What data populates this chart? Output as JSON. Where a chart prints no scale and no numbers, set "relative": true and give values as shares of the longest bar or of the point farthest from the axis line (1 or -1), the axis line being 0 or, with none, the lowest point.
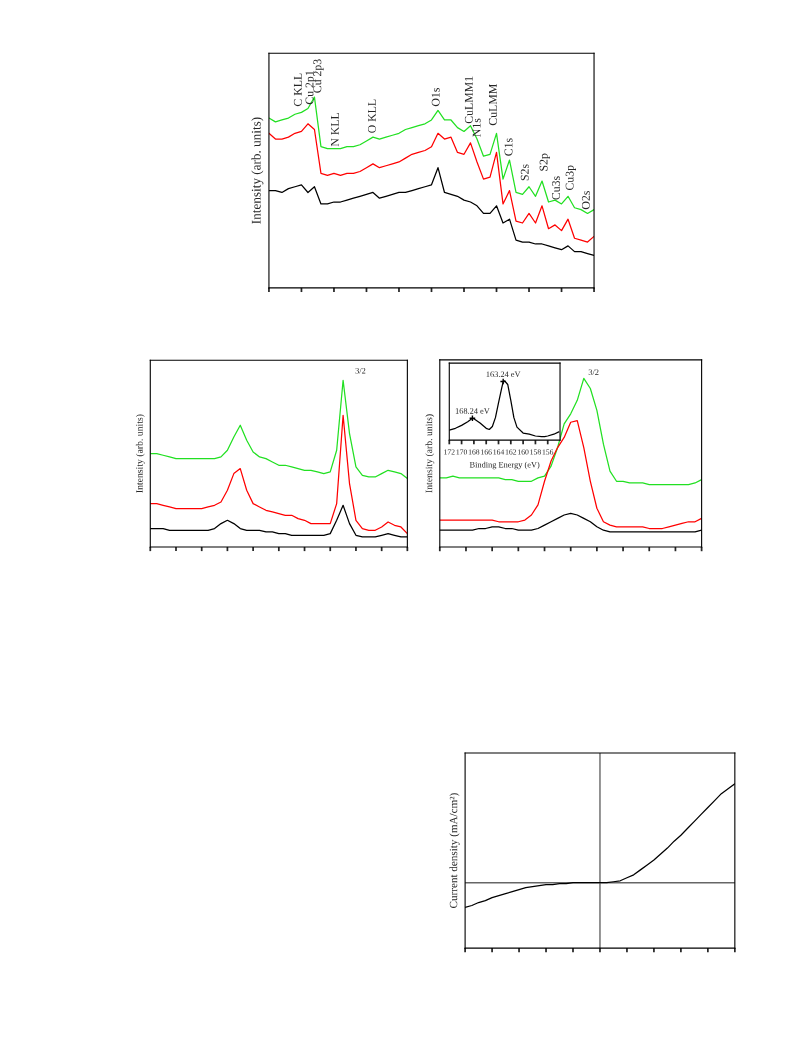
{
  "chart_data": [
    {
      "type": "line",
      "ylabel": "Intensity (arb. units)",
      "relative": true,
      "tick_labels": false,
      "categories": [
        null,
        null,
        null,
        null,
        null,
        null,
        null,
        null,
        null,
        null,
        null,
        null,
        null,
        null,
        null,
        null,
        null,
        null,
        null,
        null,
        null,
        null,
        null,
        null,
        null,
        null,
        null,
        null,
        null,
        null,
        null,
        null,
        null,
        null,
        null,
        null,
        null,
        null,
        null,
        null,
        null,
        null,
        null,
        null,
        null,
        null,
        null,
        null,
        null,
        null,
        null
      ],
      "series": [
        {
          "color": "#22e022",
          "values": [
            0.89,
            0.87,
            0.88,
            0.89,
            0.91,
            0.92,
            0.94,
            1.0,
            0.74,
            0.73,
            0.73,
            0.73,
            0.74,
            0.74,
            0.75,
            0.77,
            0.79,
            0.78,
            0.79,
            0.8,
            0.81,
            0.83,
            0.84,
            0.85,
            0.86,
            0.88,
            0.93,
            0.88,
            0.88,
            0.84,
            0.82,
            0.85,
            0.78,
            0.69,
            0.7,
            0.81,
            0.57,
            0.67,
            0.5,
            0.49,
            0.53,
            0.48,
            0.56,
            0.45,
            0.46,
            0.44,
            0.48,
            0.42,
            0.41,
            0.39,
            0.41
          ]
        },
        {
          "color": "#ff0000",
          "values": [
            0.81,
            0.78,
            0.78,
            0.79,
            0.81,
            0.82,
            0.86,
            0.83,
            0.6,
            0.59,
            0.6,
            0.59,
            0.6,
            0.6,
            0.61,
            0.63,
            0.65,
            0.63,
            0.64,
            0.65,
            0.66,
            0.68,
            0.7,
            0.71,
            0.72,
            0.74,
            0.81,
            0.78,
            0.79,
            0.71,
            0.7,
            0.76,
            0.66,
            0.57,
            0.58,
            0.71,
            0.44,
            0.51,
            0.35,
            0.34,
            0.39,
            0.34,
            0.43,
            0.31,
            0.33,
            0.3,
            0.36,
            0.26,
            0.25,
            0.24,
            0.27
          ]
        },
        {
          "color": "#000000",
          "values": [
            0.51,
            0.51,
            0.5,
            0.52,
            0.53,
            0.54,
            0.5,
            0.53,
            0.44,
            0.44,
            0.45,
            0.45,
            0.46,
            0.47,
            0.48,
            0.49,
            0.5,
            0.47,
            0.48,
            0.49,
            0.5,
            0.5,
            0.51,
            0.52,
            0.53,
            0.54,
            0.63,
            0.5,
            0.49,
            0.48,
            0.46,
            0.45,
            0.43,
            0.39,
            0.39,
            0.43,
            0.34,
            0.36,
            0.25,
            0.24,
            0.24,
            0.23,
            0.23,
            0.22,
            0.21,
            0.2,
            0.22,
            0.19,
            0.19,
            0.18,
            0.17
          ]
        }
      ],
      "annotations": [
        "C KLL",
        "Cu 2p1",
        "Cu 2p3",
        "N KLL",
        "O KLL",
        "O1s",
        "CuLMM1",
        "N1s",
        "CuLMM",
        "C1s",
        "S2s",
        "S2p",
        "Cu3s",
        "Cu3p",
        "O2s"
      ]
    },
    {
      "type": "line",
      "ylabel": "Intensity (arb. units)",
      "relative": true,
      "tick_labels": false,
      "categories": [
        null,
        null,
        null,
        null,
        null,
        null,
        null,
        null,
        null,
        null,
        null,
        null,
        null,
        null,
        null,
        null,
        null,
        null,
        null,
        null,
        null,
        null,
        null,
        null,
        null,
        null,
        null,
        null,
        null,
        null,
        null,
        null,
        null,
        null,
        null,
        null,
        null,
        null,
        null,
        null,
        null
      ],
      "series": [
        {
          "color": "#22e022",
          "values": [
            0.56,
            0.56,
            0.55,
            0.54,
            0.53,
            0.53,
            0.53,
            0.53,
            0.53,
            0.53,
            0.53,
            0.54,
            0.58,
            0.66,
            0.73,
            0.64,
            0.57,
            0.54,
            0.53,
            0.51,
            0.49,
            0.49,
            0.48,
            0.47,
            0.46,
            0.46,
            0.45,
            0.44,
            0.45,
            0.58,
            1.0,
            0.68,
            0.48,
            0.43,
            0.42,
            0.42,
            0.44,
            0.46,
            0.45,
            0.44,
            0.41
          ]
        },
        {
          "color": "#ff0000",
          "values": [
            0.26,
            0.26,
            0.25,
            0.24,
            0.23,
            0.23,
            0.23,
            0.23,
            0.23,
            0.24,
            0.25,
            0.27,
            0.34,
            0.44,
            0.47,
            0.34,
            0.26,
            0.24,
            0.22,
            0.21,
            0.2,
            0.19,
            0.19,
            0.17,
            0.16,
            0.14,
            0.14,
            0.14,
            0.14,
            0.26,
            0.79,
            0.38,
            0.16,
            0.11,
            0.1,
            0.1,
            0.12,
            0.15,
            0.13,
            0.12,
            0.08
          ]
        },
        {
          "color": "#000000",
          "values": [
            0.11,
            0.11,
            0.11,
            0.1,
            0.1,
            0.1,
            0.1,
            0.1,
            0.1,
            0.1,
            0.11,
            0.14,
            0.16,
            0.14,
            0.11,
            0.1,
            0.1,
            0.1,
            0.09,
            0.09,
            0.08,
            0.08,
            0.07,
            0.07,
            0.07,
            0.07,
            0.07,
            0.07,
            0.08,
            0.16,
            0.25,
            0.14,
            0.07,
            0.06,
            0.06,
            0.06,
            0.07,
            0.08,
            0.07,
            0.06,
            0.06
          ]
        }
      ],
      "annotations": [
        "3/2"
      ]
    },
    {
      "type": "line",
      "ylabel": "Intensity (arb. units)",
      "relative": true,
      "tick_labels": false,
      "categories": [
        null,
        null,
        null,
        null,
        null,
        null,
        null,
        null,
        null,
        null,
        null,
        null,
        null,
        null,
        null,
        null,
        null,
        null,
        null,
        null,
        null,
        null,
        null,
        null,
        null,
        null,
        null,
        null,
        null,
        null,
        null,
        null,
        null,
        null,
        null,
        null,
        null,
        null,
        null,
        null,
        null
      ],
      "series": [
        {
          "color": "#22e022",
          "values": [
            0.41,
            0.41,
            0.42,
            0.41,
            0.41,
            0.41,
            0.41,
            0.41,
            0.41,
            0.41,
            0.4,
            0.4,
            0.39,
            0.39,
            0.39,
            0.41,
            0.42,
            0.48,
            0.59,
            0.73,
            0.79,
            0.87,
            1.0,
            0.94,
            0.81,
            0.61,
            0.45,
            0.39,
            0.39,
            0.38,
            0.38,
            0.38,
            0.37,
            0.37,
            0.37,
            0.37,
            0.37,
            0.37,
            0.37,
            0.38,
            0.4
          ]
        },
        {
          "color": "#ff0000",
          "values": [
            0.16,
            0.16,
            0.16,
            0.16,
            0.16,
            0.16,
            0.16,
            0.16,
            0.16,
            0.15,
            0.15,
            0.15,
            0.15,
            0.16,
            0.19,
            0.25,
            0.39,
            0.51,
            0.59,
            0.65,
            0.74,
            0.75,
            0.59,
            0.39,
            0.23,
            0.15,
            0.13,
            0.12,
            0.12,
            0.12,
            0.12,
            0.12,
            0.11,
            0.11,
            0.11,
            0.12,
            0.13,
            0.14,
            0.15,
            0.15,
            0.17
          ]
        },
        {
          "color": "#000000",
          "values": [
            0.1,
            0.1,
            0.1,
            0.1,
            0.1,
            0.1,
            0.11,
            0.11,
            0.12,
            0.12,
            0.11,
            0.11,
            0.1,
            0.1,
            0.1,
            0.11,
            0.13,
            0.15,
            0.17,
            0.19,
            0.2,
            0.19,
            0.17,
            0.15,
            0.12,
            0.1,
            0.09,
            0.09,
            0.09,
            0.09,
            0.09,
            0.09,
            0.09,
            0.09,
            0.09,
            0.09,
            0.09,
            0.09,
            0.09,
            0.09,
            0.1
          ]
        }
      ],
      "annotations": [
        "3/2"
      ]
    },
    {
      "type": "line",
      "xlabel": "Binding Energy (eV)",
      "relative": true,
      "tick_labels": "x",
      "xlim": [
        172,
        154
      ],
      "xticks": [
        172,
        170,
        168,
        166,
        164,
        162,
        160,
        158,
        156
      ],
      "series": [
        {
          "color": "#000000",
          "x": [
            172,
            171,
            170,
            169,
            168.24,
            168,
            167,
            166,
            165.5,
            165,
            164.5,
            164,
            163.5,
            163.24,
            163,
            162.5,
            162,
            161.5,
            161,
            160,
            159,
            158,
            157,
            156.5,
            156,
            155,
            154.2
          ],
          "values": [
            0.17,
            0.2,
            0.25,
            0.31,
            0.37,
            0.36,
            0.29,
            0.2,
            0.18,
            0.23,
            0.38,
            0.63,
            0.87,
            0.99,
            1.0,
            0.94,
            0.67,
            0.38,
            0.22,
            0.12,
            0.1,
            0.07,
            0.06,
            0.06,
            0.07,
            0.1,
            0.14
          ]
        }
      ],
      "annotations": [
        {
          "text": "168.24 eV",
          "x": 168.24,
          "y": 0.37
        },
        {
          "text": "163.24 eV",
          "x": 163.24,
          "y": 0.99
        }
      ]
    },
    {
      "type": "line",
      "ylabel": "Current density (mA/cm²)",
      "relative": true,
      "tick_labels": false,
      "categories": [
        null,
        null,
        null,
        null,
        null,
        null,
        null,
        null,
        null,
        null,
        null,
        null,
        null,
        null,
        null,
        null,
        null,
        null,
        null,
        null,
        null,
        null,
        null,
        null,
        null,
        null,
        null,
        null,
        null,
        null,
        null,
        null,
        null,
        null,
        null,
        null,
        null,
        null,
        null,
        null,
        null
      ],
      "series": [
        {
          "color": "#000000",
          "values": [
            -0.25,
            -0.23,
            -0.2,
            -0.18,
            -0.15,
            -0.13,
            -0.11,
            -0.09,
            -0.07,
            -0.05,
            -0.04,
            -0.03,
            -0.02,
            -0.02,
            -0.01,
            -0.01,
            0.0,
            0.0,
            0.0,
            0.0,
            0.0,
            0.0,
            0.01,
            0.02,
            0.05,
            0.08,
            0.13,
            0.18,
            0.23,
            0.29,
            0.35,
            0.42,
            0.48,
            0.55,
            0.62,
            0.69,
            0.76,
            0.83,
            0.9,
            0.95,
            1.0
          ]
        }
      ],
      "ref_lines": [
        {
          "axis": "y",
          "value": 0,
          "color": "#666666"
        }
      ]
    }
  ]
}
